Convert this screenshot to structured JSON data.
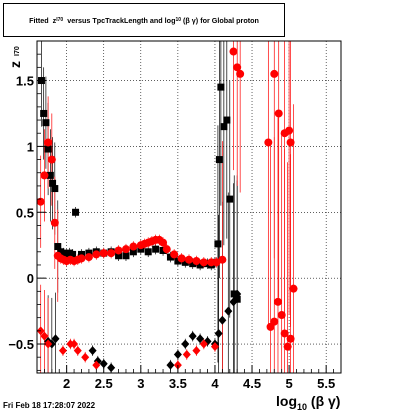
{
  "title": {
    "prefix": "Fitted",
    "z": "z",
    "z_sub": "I70",
    "middle": "versus TpcTrackLength and log",
    "log_sub": "10",
    "suffix": "(β γ) for Global proton"
  },
  "ylabel": {
    "z": "z",
    "sub": "I70"
  },
  "xlabel": {
    "main": "log",
    "sub": "10",
    "suffix": "(β γ)"
  },
  "footer": "Fri Feb 18 17:28:07 2022",
  "chart_data": {
    "type": "scatter",
    "xlim": [
      1.6,
      5.7
    ],
    "ylim": [
      -0.72,
      1.8
    ],
    "x_ticks": [
      {
        "value": 2.0,
        "label": "2"
      },
      {
        "value": 2.5,
        "label": "2.5"
      },
      {
        "value": 3.0,
        "label": "3"
      },
      {
        "value": 3.5,
        "label": "3.5"
      },
      {
        "value": 4.0,
        "label": "4"
      },
      {
        "value": 4.5,
        "label": "4.5"
      },
      {
        "value": 5.0,
        "label": "5"
      },
      {
        "value": 5.5,
        "label": "5.5"
      }
    ],
    "y_ticks": [
      {
        "value": -0.5,
        "label": "−0.5"
      },
      {
        "value": 0.0,
        "label": "0"
      },
      {
        "value": 0.5,
        "label": "0.5"
      },
      {
        "value": 1.0,
        "label": "1"
      },
      {
        "value": 1.5,
        "label": "1.5"
      }
    ],
    "grid": true,
    "series": [
      {
        "color": "#000000",
        "marker": "square",
        "points": [
          [
            1.66,
            1.5
          ],
          [
            1.69,
            1.25
          ],
          [
            1.72,
            1.18
          ],
          [
            1.75,
            0.98
          ],
          [
            1.78,
            0.78
          ],
          [
            1.81,
            0.72
          ],
          [
            1.84,
            0.68
          ],
          [
            1.88,
            0.24
          ],
          [
            1.92,
            0.2
          ],
          [
            1.96,
            0.19
          ],
          [
            2.0,
            0.18
          ],
          [
            2.04,
            0.19
          ],
          [
            2.08,
            0.18
          ],
          [
            2.12,
            0.5
          ],
          [
            2.2,
            0.18
          ],
          [
            2.3,
            0.19
          ],
          [
            2.4,
            0.2
          ],
          [
            2.5,
            0.19
          ],
          [
            2.6,
            0.2
          ],
          [
            2.7,
            0.17
          ],
          [
            2.8,
            0.17
          ],
          [
            2.9,
            0.2
          ],
          [
            3.0,
            0.22
          ],
          [
            3.1,
            0.2
          ],
          [
            3.2,
            0.22
          ],
          [
            3.3,
            0.21
          ],
          [
            3.4,
            0.16
          ],
          [
            3.5,
            0.13
          ],
          [
            3.6,
            0.12
          ],
          [
            3.7,
            0.11
          ],
          [
            3.8,
            0.1
          ],
          [
            3.9,
            0.11
          ],
          [
            3.95,
            0.1
          ],
          [
            4.0,
            0.12
          ],
          [
            4.04,
            0.26
          ],
          [
            4.06,
            0.9
          ],
          [
            4.08,
            1.45
          ],
          [
            4.12,
            1.15
          ],
          [
            4.16,
            1.2
          ],
          [
            4.2,
            0.6
          ],
          [
            4.26,
            -0.12
          ],
          [
            4.3,
            -0.16
          ]
        ]
      },
      {
        "color": "#000000",
        "marker": "diamond",
        "points": [
          [
            1.75,
            -0.48
          ],
          [
            1.8,
            -0.5
          ],
          [
            1.85,
            -0.46
          ],
          [
            2.35,
            -0.55
          ],
          [
            2.42,
            -0.63
          ],
          [
            2.5,
            -0.65
          ],
          [
            2.6,
            -0.68
          ],
          [
            3.4,
            -0.66
          ],
          [
            3.5,
            -0.58
          ],
          [
            3.6,
            -0.5
          ],
          [
            3.7,
            -0.44
          ],
          [
            3.8,
            -0.46
          ],
          [
            3.9,
            -0.48
          ],
          [
            4.0,
            -0.5
          ],
          [
            4.05,
            -0.42
          ],
          [
            4.1,
            -0.32
          ],
          [
            4.18,
            -0.25
          ],
          [
            4.25,
            -0.18
          ],
          [
            4.3,
            -0.12
          ]
        ]
      },
      {
        "color": "#ff0000",
        "marker": "circle",
        "points": [
          [
            1.65,
            0.58
          ],
          [
            1.7,
            0.78
          ],
          [
            1.75,
            1.03
          ],
          [
            1.8,
            0.9
          ],
          [
            1.84,
            0.42
          ],
          [
            1.88,
            0.17
          ],
          [
            1.92,
            0.15
          ],
          [
            1.96,
            0.14
          ],
          [
            2.0,
            0.13
          ],
          [
            2.05,
            0.14
          ],
          [
            2.1,
            0.13
          ],
          [
            2.15,
            0.14
          ],
          [
            2.2,
            0.15
          ],
          [
            2.3,
            0.16
          ],
          [
            2.4,
            0.18
          ],
          [
            2.5,
            0.19
          ],
          [
            2.6,
            0.19
          ],
          [
            2.7,
            0.21
          ],
          [
            2.8,
            0.22
          ],
          [
            2.9,
            0.24
          ],
          [
            3.0,
            0.25
          ],
          [
            3.05,
            0.26
          ],
          [
            3.1,
            0.27
          ],
          [
            3.15,
            0.28
          ],
          [
            3.2,
            0.29
          ],
          [
            3.25,
            0.29
          ],
          [
            3.3,
            0.27
          ],
          [
            3.35,
            0.22
          ],
          [
            3.45,
            0.18
          ],
          [
            3.55,
            0.15
          ],
          [
            3.65,
            0.14
          ],
          [
            3.75,
            0.13
          ],
          [
            3.85,
            0.12
          ],
          [
            3.95,
            0.12
          ],
          [
            4.02,
            0.12
          ],
          [
            4.1,
            0.14
          ],
          [
            4.25,
            1.72
          ],
          [
            4.3,
            1.6
          ],
          [
            4.34,
            1.55
          ],
          [
            4.72,
            1.03
          ],
          [
            4.8,
            1.55
          ],
          [
            4.86,
            1.25
          ],
          [
            4.94,
            1.1
          ],
          [
            5.0,
            1.12
          ],
          [
            5.02,
            1.03
          ],
          [
            4.75,
            -0.37
          ],
          [
            4.8,
            -0.33
          ],
          [
            4.85,
            -0.18
          ],
          [
            4.9,
            -0.28
          ],
          [
            4.94,
            -0.42
          ],
          [
            4.98,
            -0.52
          ],
          [
            5.02,
            -0.46
          ],
          [
            5.06,
            -0.08
          ]
        ]
      },
      {
        "color": "#ff0000",
        "marker": "diamond",
        "points": [
          [
            1.65,
            -0.4
          ],
          [
            1.7,
            -0.44
          ],
          [
            1.75,
            -0.5
          ],
          [
            1.95,
            -0.55
          ],
          [
            2.05,
            -0.5
          ],
          [
            2.1,
            -0.5
          ],
          [
            2.15,
            -0.55
          ],
          [
            2.25,
            -0.6
          ],
          [
            2.4,
            -0.66
          ],
          [
            3.5,
            -0.66
          ],
          [
            3.62,
            -0.58
          ],
          [
            3.75,
            -0.55
          ],
          [
            3.85,
            -0.5
          ],
          [
            4.0,
            -0.52
          ]
        ]
      }
    ]
  }
}
